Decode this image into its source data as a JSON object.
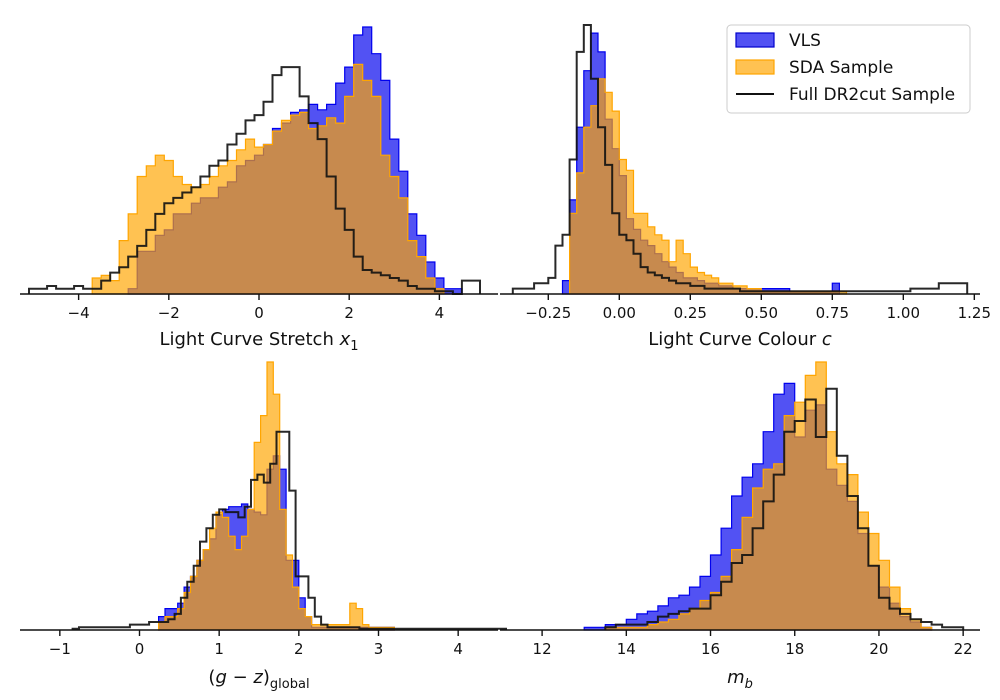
{
  "chart_data": [
    {
      "type": "histogram",
      "xlabel": "Light Curve Stretch x",
      "xlabel_sub": "1",
      "xlim": [
        -5.3,
        5.3
      ],
      "xticks": [
        -4,
        -2,
        0,
        2,
        4
      ],
      "xtick_labels": [
        "−4",
        "−2",
        "0",
        "2",
        "4"
      ],
      "bin_width": 0.2,
      "series": [
        {
          "id": "vls",
          "color": "#0000ee",
          "style": "filled",
          "x_start": -2.9,
          "heights": [
            0.02,
            0.16,
            0.16,
            0.22,
            0.24,
            0.3,
            0.3,
            0.34,
            0.36,
            0.36,
            0.4,
            0.42,
            0.48,
            0.5,
            0.52,
            0.56,
            0.62,
            0.64,
            0.68,
            0.69,
            0.71,
            0.69,
            0.71,
            0.79,
            0.85,
            0.97,
            1.0,
            0.9,
            0.8,
            0.58,
            0.46,
            0.3,
            0.22,
            0.12,
            0.06,
            0.02,
            0.02
          ]
        },
        {
          "id": "sda",
          "color": "#ffa500",
          "style": "filled",
          "x_start": -3.7,
          "heights": [
            0.06,
            0.07,
            0.05,
            0.2,
            0.3,
            0.44,
            0.48,
            0.52,
            0.5,
            0.44,
            0.41,
            0.4,
            0.41,
            0.44,
            0.48,
            0.5,
            0.54,
            0.58,
            0.55,
            0.56,
            0.61,
            0.65,
            0.67,
            0.68,
            0.62,
            0.63,
            0.66,
            0.64,
            0.74,
            0.86,
            0.8,
            0.74,
            0.52,
            0.44,
            0.36,
            0.2,
            0.14,
            0.06,
            0.02
          ]
        },
        {
          "id": "full",
          "color": "#111111",
          "style": "step",
          "x_start": -5.1,
          "heights": [
            0.02,
            0.02,
            0.03,
            0.02,
            0.02,
            0.03,
            0.02,
            0.02,
            0.05,
            0.08,
            0.1,
            0.14,
            0.18,
            0.24,
            0.3,
            0.34,
            0.36,
            0.38,
            0.4,
            0.44,
            0.48,
            0.5,
            0.56,
            0.6,
            0.65,
            0.67,
            0.72,
            0.82,
            0.85,
            0.85,
            0.74,
            0.64,
            0.58,
            0.44,
            0.32,
            0.24,
            0.14,
            0.09,
            0.08,
            0.07,
            0.06,
            0.05,
            0.03,
            0.02,
            0.02,
            0.01,
            0.01,
            0.0,
            0.05,
            0.05
          ]
        }
      ]
    },
    {
      "type": "histogram",
      "xlabel": "Light Curve Colour c",
      "xlim": [
        -0.42,
        1.27
      ],
      "xticks": [
        -0.25,
        0.0,
        0.25,
        0.5,
        0.75,
        1.0,
        1.25
      ],
      "xtick_labels": [
        "−0.25",
        "0.00",
        "0.25",
        "0.50",
        "0.75",
        "1.00",
        "1.25"
      ],
      "bin_width": 0.025,
      "series": [
        {
          "id": "vls",
          "color": "#0000ee",
          "style": "filled",
          "x_start": -0.2,
          "heights": [
            0.05,
            0.35,
            0.62,
            0.83,
            0.97,
            0.9,
            0.65,
            0.54,
            0.44,
            0.28,
            0.24,
            0.2,
            0.18,
            0.15,
            0.12,
            0.1,
            0.08,
            0.06,
            0.06,
            0.05,
            0.04,
            0.04,
            0.03,
            0.03,
            0.02,
            0.02,
            0.02,
            0.02,
            0.02,
            0.02,
            0.02,
            0.02,
            0.01,
            0.01,
            0.01,
            0.01,
            0.01,
            0.01,
            0.04
          ]
        },
        {
          "id": "sda",
          "color": "#ffa500",
          "style": "filled",
          "x_start": -0.175,
          "heights": [
            0.3,
            0.45,
            0.62,
            0.7,
            0.8,
            0.75,
            0.68,
            0.5,
            0.46,
            0.3,
            0.3,
            0.25,
            0.22,
            0.2,
            0.12,
            0.2,
            0.15,
            0.1,
            0.08,
            0.07,
            0.06,
            0.04,
            0.04,
            0.03,
            0.03,
            0.02,
            0.02,
            0.01,
            0.01,
            0.01,
            0.01,
            0.01,
            0.01,
            0.01,
            0.01,
            0.01,
            0.01,
            0.01,
            0.01
          ]
        },
        {
          "id": "full",
          "color": "#111111",
          "style": "step",
          "x_start": -0.375,
          "heights": [
            0.02,
            0.02,
            0.02,
            0.04,
            0.04,
            0.06,
            0.18,
            0.22,
            0.5,
            0.9,
            1.0,
            0.8,
            0.62,
            0.48,
            0.3,
            0.22,
            0.2,
            0.15,
            0.1,
            0.08,
            0.07,
            0.06,
            0.05,
            0.04,
            0.04,
            0.03,
            0.03,
            0.02,
            0.02,
            0.02,
            0.02,
            0.02,
            0.01,
            0.01,
            0.01,
            0.01,
            0.01,
            0.01,
            0.01,
            0.01,
            0.01,
            0.01,
            0.01,
            0.01,
            0.01,
            0.01,
            0.01,
            0.01,
            0.01,
            0.01,
            0.01,
            0.01,
            0.01,
            0.01,
            0.01,
            0.01,
            0.02,
            0.02,
            0.02,
            0.02,
            0.04,
            0.04,
            0.04,
            0.04
          ]
        }
      ],
      "legend": {
        "placement": "upper right",
        "entries": [
          {
            "label": "VLS",
            "kind": "patch",
            "fill": "#0000ee",
            "edge": "#0000cc"
          },
          {
            "label": "SDA Sample",
            "kind": "patch",
            "fill": "#ffa500",
            "edge": "#ffa500"
          },
          {
            "label": "Full DR2cut Sample",
            "kind": "line",
            "color": "#111111"
          }
        ]
      }
    },
    {
      "type": "histogram",
      "xlabel": "(g − z)",
      "xlabel_sub": "global",
      "xlim": [
        -1.5,
        4.5
      ],
      "xticks": [
        -1,
        0,
        1,
        2,
        3,
        4
      ],
      "xtick_labels": [
        "−1",
        "0",
        "1",
        "2",
        "3",
        "4"
      ],
      "bin_width": 0.08,
      "series": [
        {
          "id": "vls",
          "color": "#0000ee",
          "style": "filled",
          "x_start": 0.24,
          "heights": [
            0.05,
            0.08,
            0.08,
            0.1,
            0.16,
            0.2,
            0.26,
            0.3,
            0.34,
            0.43,
            0.45,
            0.46,
            0.46,
            0.47,
            0.45,
            0.44,
            0.43,
            0.6,
            0.65,
            0.6,
            0.26,
            0.26,
            0.12,
            0.05,
            0.01,
            0.01,
            0.01,
            0.01,
            0.01,
            0.01,
            0.01,
            0.01,
            0.01,
            0.01,
            0.01,
            0.01,
            0.01
          ]
        },
        {
          "id": "sda",
          "color": "#ffa500",
          "style": "filled",
          "x_start": 0.24,
          "heights": [
            0.03,
            0.05,
            0.05,
            0.08,
            0.14,
            0.2,
            0.26,
            0.3,
            0.38,
            0.44,
            0.42,
            0.35,
            0.3,
            0.35,
            0.45,
            0.7,
            0.8,
            1.0,
            0.88,
            0.45,
            0.28,
            0.16,
            0.08,
            0.05,
            0.02,
            0.02,
            0.02,
            0.02,
            0.02,
            0.02,
            0.1,
            0.08,
            0.02,
            0.01,
            0.01,
            0.01,
            0.01
          ]
        },
        {
          "id": "full",
          "color": "#111111",
          "style": "step",
          "x_start": -0.84,
          "heights": [
            0.005,
            0.01,
            0.01,
            0.01,
            0.01,
            0.01,
            0.01,
            0.01,
            0.01,
            0.02,
            0.02,
            0.02,
            0.03,
            0.03,
            0.03,
            0.04,
            0.06,
            0.12,
            0.18,
            0.24,
            0.33,
            0.38,
            0.43,
            0.45,
            0.44,
            0.44,
            0.42,
            0.46,
            0.56,
            0.58,
            0.55,
            0.62,
            0.74,
            0.74,
            0.52,
            0.2,
            0.2,
            0.12,
            0.05,
            0.02,
            0.01,
            0.01,
            0.01,
            0.01,
            0.01,
            0.005,
            0.005,
            0.005,
            0.005,
            0.005,
            0.005,
            0.005,
            0.005,
            0.005,
            0.005,
            0.005,
            0.005,
            0.005,
            0.005,
            0.005,
            0.005,
            0.005,
            0.005,
            0.005,
            0.005,
            0.005,
            0.005,
            0.005
          ]
        }
      ]
    },
    {
      "type": "histogram",
      "xlabel": "m",
      "xlabel_sub": "b",
      "xlim": [
        11.0,
        22.4
      ],
      "xticks": [
        12,
        14,
        16,
        18,
        20,
        22
      ],
      "xtick_labels": [
        "12",
        "14",
        "16",
        "18",
        "20",
        "22"
      ],
      "bin_width": 0.25,
      "series": [
        {
          "id": "vls",
          "color": "#0000ee",
          "style": "filled",
          "x_start": 13.0,
          "heights": [
            0.01,
            0.01,
            0.02,
            0.02,
            0.04,
            0.06,
            0.07,
            0.09,
            0.12,
            0.13,
            0.16,
            0.2,
            0.28,
            0.38,
            0.5,
            0.57,
            0.62,
            0.74,
            0.88,
            0.92,
            0.72,
            0.82,
            0.84,
            0.6,
            0.54,
            0.48,
            0.36,
            0.24,
            0.16,
            0.1,
            0.05,
            0.03,
            0.01
          ]
        },
        {
          "id": "sda",
          "color": "#ffa500",
          "style": "filled",
          "x_start": 13.5,
          "heights": [
            0.01,
            0.01,
            0.01,
            0.01,
            0.02,
            0.03,
            0.04,
            0.06,
            0.08,
            0.11,
            0.14,
            0.2,
            0.3,
            0.42,
            0.53,
            0.6,
            0.62,
            0.8,
            0.85,
            0.95,
            1.0,
            0.74,
            0.62,
            0.58,
            0.44,
            0.36,
            0.26,
            0.16,
            0.08,
            0.04,
            0.01
          ]
        },
        {
          "id": "full",
          "color": "#111111",
          "style": "step",
          "x_start": 13.5,
          "heights": [
            0.01,
            0.02,
            0.02,
            0.02,
            0.03,
            0.05,
            0.06,
            0.07,
            0.08,
            0.08,
            0.13,
            0.18,
            0.25,
            0.28,
            0.38,
            0.48,
            0.58,
            0.74,
            0.78,
            0.86,
            0.72,
            0.9,
            0.65,
            0.5,
            0.38,
            0.24,
            0.12,
            0.08,
            0.06,
            0.04,
            0.03,
            0.02,
            0.01,
            0.01
          ]
        }
      ]
    }
  ]
}
